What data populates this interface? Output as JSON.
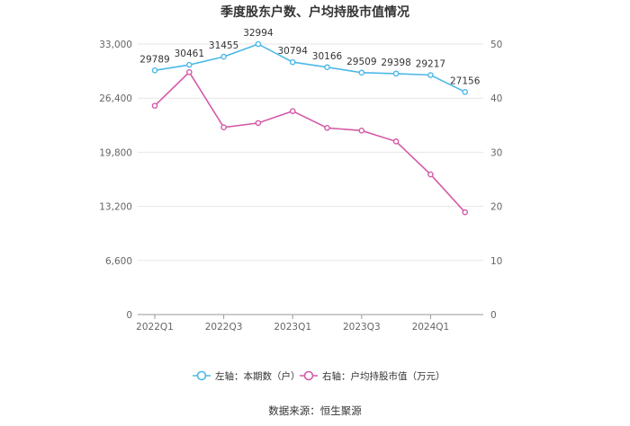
{
  "chart_data": {
    "type": "line",
    "title": "季度股东户数、户均持股市值情况",
    "categories": [
      "2022Q1",
      "2022Q2",
      "2022Q3",
      "2022Q4",
      "2023Q1",
      "2023Q2",
      "2023Q3",
      "2023Q4",
      "2024Q1",
      "2024Q2"
    ],
    "x_tick_labels": [
      "2022Q1",
      "",
      "2022Q3",
      "",
      "2023Q1",
      "",
      "2023Q3",
      "",
      "2024Q1",
      ""
    ],
    "left_axis": {
      "ylim": [
        0,
        33000
      ],
      "ticks": [
        0,
        6600,
        13200,
        19800,
        26400,
        33000
      ],
      "tick_labels": [
        "0",
        "6,600",
        "13,200",
        "19,800",
        "26,400",
        "33,000"
      ]
    },
    "right_axis": {
      "ylim": [
        0,
        50
      ],
      "ticks": [
        0,
        10,
        20,
        30,
        40,
        50
      ],
      "tick_labels": [
        "0",
        "10",
        "20",
        "30",
        "40",
        "50"
      ]
    },
    "grid": true,
    "legend_position": "bottom",
    "series": [
      {
        "name": "左轴：本期数（户）",
        "axis": "left",
        "color": "#4db8e8",
        "values": [
          29789,
          30461,
          31455,
          32994,
          30794,
          30166,
          29509,
          29398,
          29217,
          27156
        ],
        "labels": [
          "29789",
          "30461",
          "31455",
          "32994",
          "30794",
          "30166",
          "29509",
          "29398",
          "29217",
          "27156"
        ]
      },
      {
        "name": "右轴：户均持股市值（万元）",
        "axis": "right",
        "color": "#d45aa8",
        "values": [
          38.6,
          44.8,
          34.6,
          35.4,
          37.6,
          34.5,
          34.0,
          32.0,
          25.9,
          18.9
        ]
      }
    ],
    "source": "数据来源：恒生聚源"
  }
}
